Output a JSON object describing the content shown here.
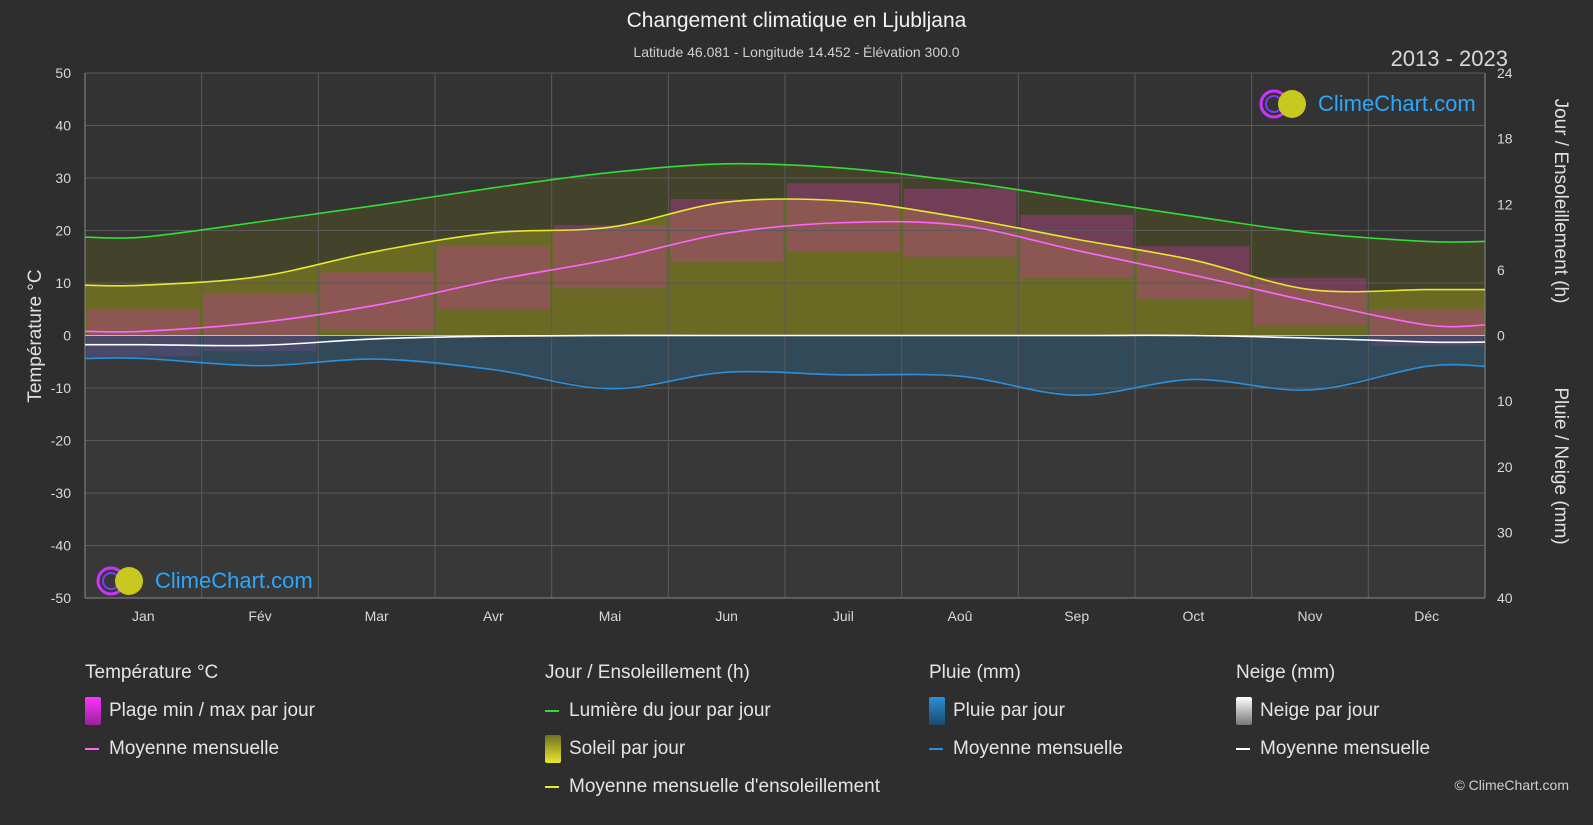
{
  "title": "Changement climatique en Ljubljana",
  "subtitle": "Latitude 46.081 - Longitude 14.452 - Élévation 300.0",
  "years": "2013 - 2023",
  "logo_text": "ClimeChart.com",
  "copyright": "© ClimeChart.com",
  "colors": {
    "background": "#2e2e2e",
    "daylight": "#33dd33",
    "sunshine_mean": "#e8e830",
    "temp_mean": "#ff66ff",
    "rain_mean": "#2a8fdd",
    "snow_mean": "#ffffff",
    "temp_range": "#cc33aa",
    "sunshine_fill": "#8a8a20",
    "rain_fill": "#1e5f8a",
    "snow_fill": "#8a8a8a"
  },
  "chart_data": {
    "type": "area",
    "categories": [
      "Jan",
      "Fév",
      "Mar",
      "Avr",
      "Mai",
      "Jun",
      "Juil",
      "Aoû",
      "Sep",
      "Oct",
      "Nov",
      "Déc"
    ],
    "left_axis": {
      "label": "Température °C",
      "min": -50,
      "max": 50,
      "ticks": [
        50,
        40,
        30,
        20,
        10,
        0,
        -10,
        -20,
        -30,
        -40,
        -50
      ]
    },
    "right_axis_top": {
      "label": "Jour / Ensoleillement (h)",
      "min": 0,
      "max": 24,
      "ticks": [
        24,
        18,
        12,
        6,
        0
      ]
    },
    "right_axis_bottom": {
      "label": "Pluie / Neige (mm)",
      "min": 0,
      "max": 40,
      "ticks": [
        0,
        10,
        20,
        30,
        40
      ]
    },
    "series": [
      {
        "name": "Lumière du jour par jour",
        "unit": "h",
        "values": [
          9.0,
          10.4,
          11.9,
          13.5,
          14.9,
          15.7,
          15.3,
          14.1,
          12.5,
          10.9,
          9.4,
          8.6
        ]
      },
      {
        "name": "Moyenne mensuelle d'ensoleillement",
        "unit": "h",
        "values": [
          4.6,
          5.4,
          7.7,
          9.4,
          9.9,
          12.2,
          12.3,
          10.8,
          8.8,
          6.9,
          4.2,
          4.2
        ]
      },
      {
        "name": "Moyenne mensuelle",
        "group": "Température °C",
        "unit": "°C",
        "values": [
          0.8,
          2.5,
          5.8,
          10.5,
          14.5,
          19.5,
          21.5,
          21.0,
          16.2,
          11.5,
          6.5,
          2.0
        ]
      },
      {
        "name": "Moyenne mensuelle",
        "group": "Pluie (mm)",
        "unit": "mm",
        "values": [
          3.5,
          4.6,
          3.6,
          5.2,
          8.1,
          5.6,
          6.0,
          6.2,
          9.1,
          6.7,
          8.3,
          4.7
        ]
      },
      {
        "name": "Moyenne mensuelle",
        "group": "Neige (mm)",
        "unit": "mm",
        "values": [
          1.4,
          1.5,
          0.5,
          0.1,
          0.0,
          0.0,
          0.0,
          0.0,
          0.0,
          0.0,
          0.4,
          1.0
        ]
      }
    ],
    "temp_daily_range": {
      "min": [
        -4,
        -3,
        1,
        5,
        9,
        14,
        16,
        15,
        11,
        7,
        2,
        -2
      ],
      "max": [
        5,
        8,
        12,
        17,
        21,
        26,
        29,
        28,
        23,
        17,
        11,
        5
      ]
    }
  },
  "legend": {
    "temperature": {
      "title": "Température °C",
      "items": [
        "Plage min / max par jour",
        "Moyenne mensuelle"
      ]
    },
    "sun": {
      "title": "Jour / Ensoleillement (h)",
      "items": [
        "Lumière du jour par jour",
        "Soleil par jour",
        "Moyenne mensuelle d'ensoleillement"
      ]
    },
    "rain": {
      "title": "Pluie (mm)",
      "items": [
        "Pluie par jour",
        "Moyenne mensuelle"
      ]
    },
    "snow": {
      "title": "Neige (mm)",
      "items": [
        "Neige par jour",
        "Moyenne mensuelle"
      ]
    }
  }
}
